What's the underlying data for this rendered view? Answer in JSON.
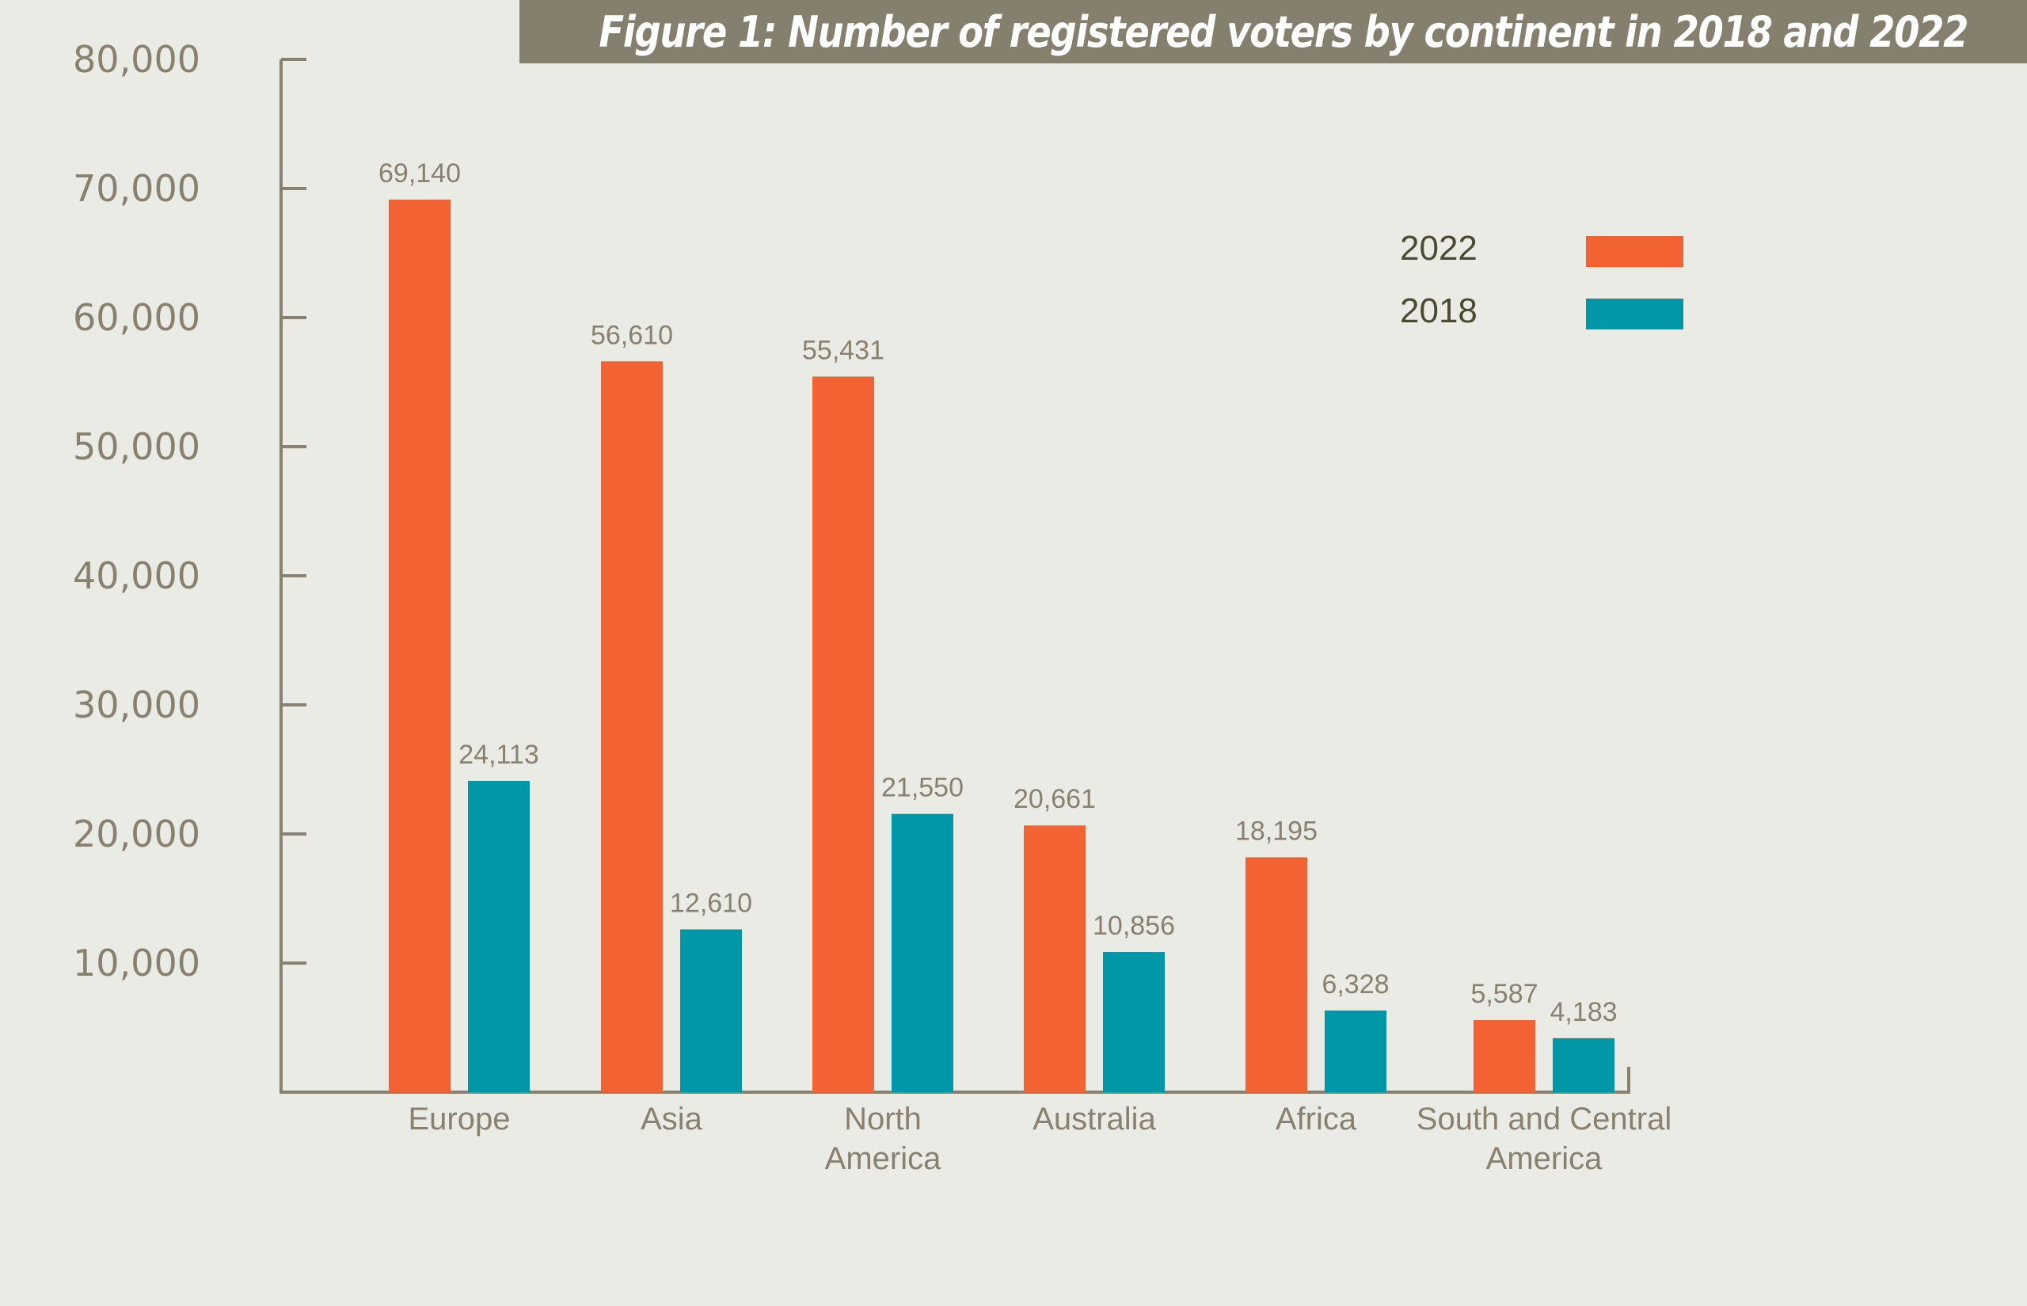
{
  "title": "Figure 1: Number of registered voters by continent in 2018 and 2022",
  "colors": {
    "background": "#e9ebe4",
    "banner": "#857f6d",
    "axis": "#888170",
    "series_2022": "#f26232",
    "series_2018": "#0097a8",
    "legend_text": "#4b4a33"
  },
  "chart_data": {
    "type": "bar",
    "title": "Figure 1: Number of registered voters by continent in 2018 and 2022",
    "xlabel": "",
    "ylabel": "",
    "categories": [
      "Europe",
      "Asia",
      "North America",
      "Australia",
      "Africa",
      "South and Central America"
    ],
    "category_lines": [
      [
        "Europe"
      ],
      [
        "Asia"
      ],
      [
        "North",
        "America"
      ],
      [
        "Australia"
      ],
      [
        "Africa"
      ],
      [
        "South and Central",
        "America"
      ]
    ],
    "series": [
      {
        "name": "2022",
        "color": "#f26232",
        "values": [
          69140,
          56610,
          55431,
          20661,
          18195,
          5587
        ],
        "labels": [
          "69,140",
          "56,610",
          "55,431",
          "20,661",
          "18,195",
          "5,587"
        ]
      },
      {
        "name": "2018",
        "color": "#0097a8",
        "values": [
          24113,
          12610,
          21550,
          10856,
          6328,
          4183
        ],
        "labels": [
          "24,113",
          "12,610",
          "21,550",
          "10,856",
          "6,328",
          "4,183"
        ]
      }
    ],
    "ylim": [
      0,
      80000
    ],
    "yticks": [
      10000,
      20000,
      30000,
      40000,
      50000,
      60000,
      70000,
      80000
    ],
    "ytick_labels": [
      "10,000",
      "20,000",
      "30,000",
      "40,000",
      "50,000",
      "60,000",
      "70,000",
      "80,000"
    ],
    "grid": false,
    "legend": {
      "position": "top-right",
      "entries": [
        {
          "label": "2022",
          "color": "#f26232"
        },
        {
          "label": "2018",
          "color": "#0097a8"
        }
      ]
    }
  }
}
